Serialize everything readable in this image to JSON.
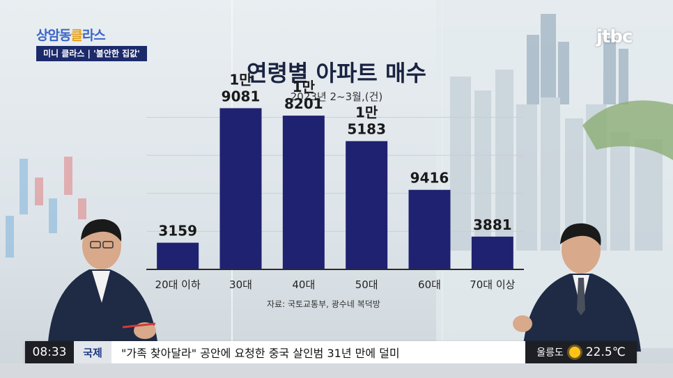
{
  "broadcast": {
    "show_logo_a": "상암동",
    "show_logo_b": "클",
    "show_logo_c": "라스",
    "segment": "미니 클라스 | '불안한 집값'",
    "channel": "jtbc"
  },
  "chart_data": {
    "type": "bar",
    "title": "연령별 아파트 매수",
    "subtitle": "2023년 2~3월,(건)",
    "categories": [
      "20대 이하",
      "30대",
      "40대",
      "50대",
      "60대",
      "70대 이상"
    ],
    "values": [
      3159,
      19081,
      18201,
      15183,
      9416,
      3881
    ],
    "labels": [
      [
        "3159"
      ],
      [
        "1만",
        "9081"
      ],
      [
        "1만",
        "8201"
      ],
      [
        "1만",
        "5183"
      ],
      [
        "9416"
      ],
      [
        "3881"
      ]
    ],
    "ylim": [
      0,
      22000
    ],
    "bar_color": "#1f2270",
    "source": "자료: 국토교통부, 광수네 복덕방"
  },
  "ticker": {
    "time": "08:33",
    "category": "국제",
    "headline": "\"가족 찾아달라\" 공안에 요청한 중국 살인범 31년 만에 덜미",
    "location": "울릉도",
    "temperature": "22.5℃"
  }
}
